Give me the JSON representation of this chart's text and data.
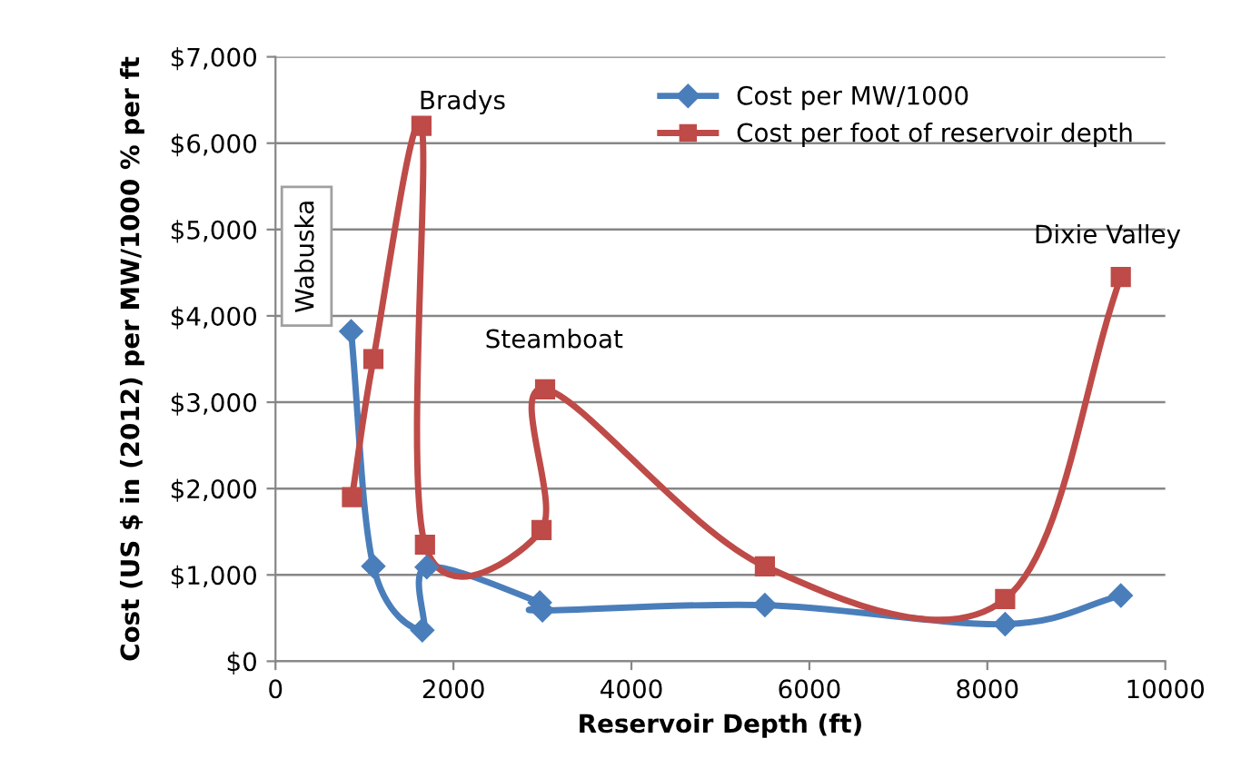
{
  "chart_data": {
    "type": "line",
    "xlabel": "Reservoir Depth (ft)",
    "ylabel": "Cost (US $ in (2012) per MW/1000 % per ft",
    "xlim": [
      0,
      10000
    ],
    "xticks": [
      0,
      2000,
      4000,
      6000,
      8000,
      10000
    ],
    "ylim": [
      0,
      7000
    ],
    "yticks": [
      {
        "value": 0,
        "label": "$0"
      },
      {
        "value": 1000,
        "label": "$1,000"
      },
      {
        "value": 2000,
        "label": "$2,000"
      },
      {
        "value": 3000,
        "label": "$3,000"
      },
      {
        "value": 4000,
        "label": "$4,000"
      },
      {
        "value": 5000,
        "label": "$5,000"
      },
      {
        "value": 6000,
        "label": "$6,000"
      },
      {
        "value": 7000,
        "label": "$7,000"
      }
    ],
    "grid": "y",
    "legend": "top right",
    "series": [
      {
        "name": "Cost per MW/1000",
        "color": "#4a7ebb",
        "marker": "diamond",
        "x": [
          850,
          1100,
          1650,
          1700,
          2970,
          3000,
          5500,
          8200,
          9500
        ],
        "values": [
          3820,
          1100,
          360,
          1090,
          680,
          590,
          650,
          430,
          760
        ]
      },
      {
        "name": "Cost per foot of reservoir depth",
        "color": "#be4b48",
        "marker": "square",
        "x": [
          860,
          1100,
          1640,
          1680,
          2990,
          3030,
          5500,
          8200,
          9500
        ],
        "values": [
          1900,
          3500,
          6200,
          1350,
          1520,
          3150,
          1100,
          720,
          4450
        ]
      }
    ],
    "annotations": [
      "Bradys",
      "Wabuska",
      "Steamboat",
      "Dixie Valley"
    ]
  }
}
